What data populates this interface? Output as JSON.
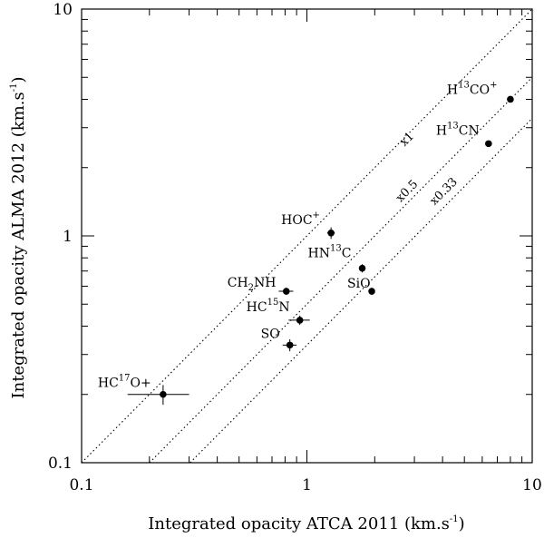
{
  "chart_data": {
    "type": "scatter",
    "xscale": "log",
    "yscale": "log",
    "xlim": [
      0.1,
      10
    ],
    "ylim": [
      0.1,
      10
    ],
    "xlabel": "Integrated opacity ATCA 2011 (km.s",
    "xlabel_sup": "-1",
    "xlabel_close": ")",
    "ylabel": "Integrated opacity ALMA 2012 (km.s",
    "ylabel_sup": "-1",
    "ylabel_close": ")",
    "xticks": [
      {
        "value": 0.1,
        "label": "0.1"
      },
      {
        "value": 1,
        "label": "1"
      },
      {
        "value": 10,
        "label": "10"
      }
    ],
    "yticks": [
      {
        "value": 0.1,
        "label": "0.1"
      },
      {
        "value": 1,
        "label": "1"
      },
      {
        "value": 10,
        "label": "10"
      }
    ],
    "points": [
      {
        "name": "H13CO+",
        "pre": "H",
        "sup": "13",
        "post": "CO",
        "post_sup": "+",
        "x": 8.0,
        "y": 4.0,
        "xerr": 0.25,
        "yerr": 0.1
      },
      {
        "name": "H13CN",
        "pre": "H",
        "sup": "13",
        "post": "CN",
        "post_sup": "",
        "x": 6.4,
        "y": 2.55,
        "xerr": 0.2,
        "yerr": 0.06
      },
      {
        "name": "HOC+",
        "pre": "HOC",
        "sup": "+",
        "post": "",
        "post_sup": "",
        "x": 1.28,
        "y": 1.03,
        "xerr": 0.05,
        "yerr": 0.06
      },
      {
        "name": "HN13C",
        "pre": "HN",
        "sup": "13",
        "post": "C",
        "post_sup": "",
        "x": 1.76,
        "y": 0.72,
        "xerr": 0.05,
        "yerr": 0.03
      },
      {
        "name": "SiO",
        "pre": "SiO",
        "sup": "",
        "post": "",
        "post_sup": "",
        "x": 1.94,
        "y": 0.57,
        "xerr": 0.04,
        "yerr": 0.02
      },
      {
        "name": "CH2NH",
        "pre": "CH",
        "sub": "2",
        "post": "NH",
        "post_sup": "",
        "x": 0.81,
        "y": 0.57,
        "xerr": 0.06,
        "yerr": 0.02
      },
      {
        "name": "HC15N",
        "pre": "HC",
        "sup": "15",
        "post": "N",
        "post_sup": "",
        "x": 0.93,
        "y": 0.425,
        "xerr": 0.1,
        "yerr": 0.02
      },
      {
        "name": "SO",
        "pre": "SO",
        "sup": "",
        "post": "",
        "post_sup": "",
        "x": 0.84,
        "y": 0.33,
        "xerr": 0.06,
        "yerr": 0.02
      },
      {
        "name": "HC17O+",
        "pre": "HC",
        "sup": "17",
        "post": "O+",
        "post_sup": "",
        "x": 0.23,
        "y": 0.2,
        "xerr": 0.07,
        "yerr": 0.02
      }
    ],
    "ratio_lines": [
      {
        "label": "x1",
        "factor": 1
      },
      {
        "label": "x0.5",
        "factor": 0.5
      },
      {
        "label": "x0.33",
        "factor": 0.33
      }
    ]
  }
}
